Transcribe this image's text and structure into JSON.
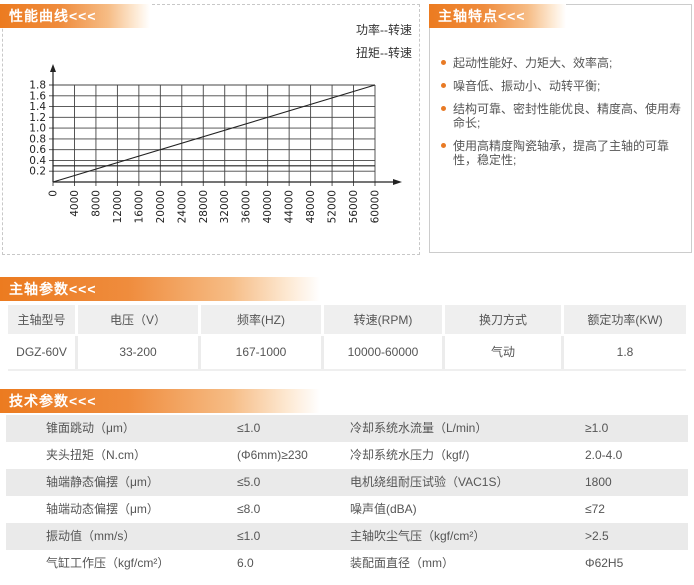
{
  "performance_panel": {
    "title": "性能曲线<<<"
  },
  "features_panel": {
    "title": "主轴特点<<<",
    "bullets": [
      "起动性能好、力矩大、效率高;",
      "噪音低、振动小、动转平衡;",
      "结构可靠、密封性能优良、精度高、使用寿命长;",
      "使用高精度陶瓷轴承，提高了主轴的可靠性，稳定性;"
    ],
    "bullet_color": "#e87a25"
  },
  "spindle_params": {
    "title": "主轴参数<<<",
    "headers": [
      "主轴型号",
      "电压（V）",
      "频率(HZ)",
      "转速(RPM)",
      "换刀方式",
      "额定功率(KW)"
    ],
    "rows": [
      [
        "DGZ-60V",
        "33-200",
        "167-1000",
        "10000-60000",
        "气动",
        "1.8"
      ]
    ]
  },
  "tech_params": {
    "title": "技术参数<<<",
    "rows": [
      [
        "锥面跳动（μm）",
        "≤1.0",
        "冷却系统水流量（L/min）",
        "≥1.0"
      ],
      [
        "夹头扭矩（N.cm）",
        "(Φ6mm)≥230",
        "冷却系统水压力（kgf/)",
        "2.0-4.0"
      ],
      [
        "轴端静态偏摆（μm）",
        "≤5.0",
        "电机绕组耐压试验（VAC1S）",
        "1800"
      ],
      [
        "轴端动态偏摆（μm）",
        "≤8.0",
        "噪声值(dBA)",
        "≤72"
      ],
      [
        "振动值（mm/s）",
        "≤1.0",
        "主轴吹尘气压（kgf/cm²）",
        ">2.5"
      ],
      [
        "气缸工作压（kgf/cm²）",
        "6.0",
        "装配面直径（mm）",
        "Φ62H5"
      ]
    ]
  },
  "colors": {
    "accent_orange": "#ec7b20",
    "table_header_bg": "#efefef",
    "row_stripe_bg": "#eaeaea",
    "text_gray": "#555555",
    "chart_line": "#222222"
  },
  "chart_data": {
    "type": "line",
    "title": "",
    "xlabel": "",
    "ylabel": "",
    "xlim": [
      0,
      60000
    ],
    "ylim": [
      0,
      1.8
    ],
    "x_ticks": [
      0,
      4000,
      8000,
      12000,
      16000,
      20000,
      24000,
      28000,
      32000,
      36000,
      40000,
      44000,
      48000,
      52000,
      56000,
      60000
    ],
    "y_ticks": [
      0.2,
      0.4,
      0.6,
      0.8,
      1.0,
      1.2,
      1.4,
      1.6,
      1.8
    ],
    "grid": true,
    "legend_position": "top-right-outside",
    "series": [
      {
        "name": "功率--转速",
        "x": [
          0,
          60000
        ],
        "y": [
          0,
          1.8
        ]
      },
      {
        "name": "扭矩--转速",
        "x": [
          0,
          60000
        ],
        "y": [
          0.3,
          0.3
        ]
      }
    ]
  }
}
